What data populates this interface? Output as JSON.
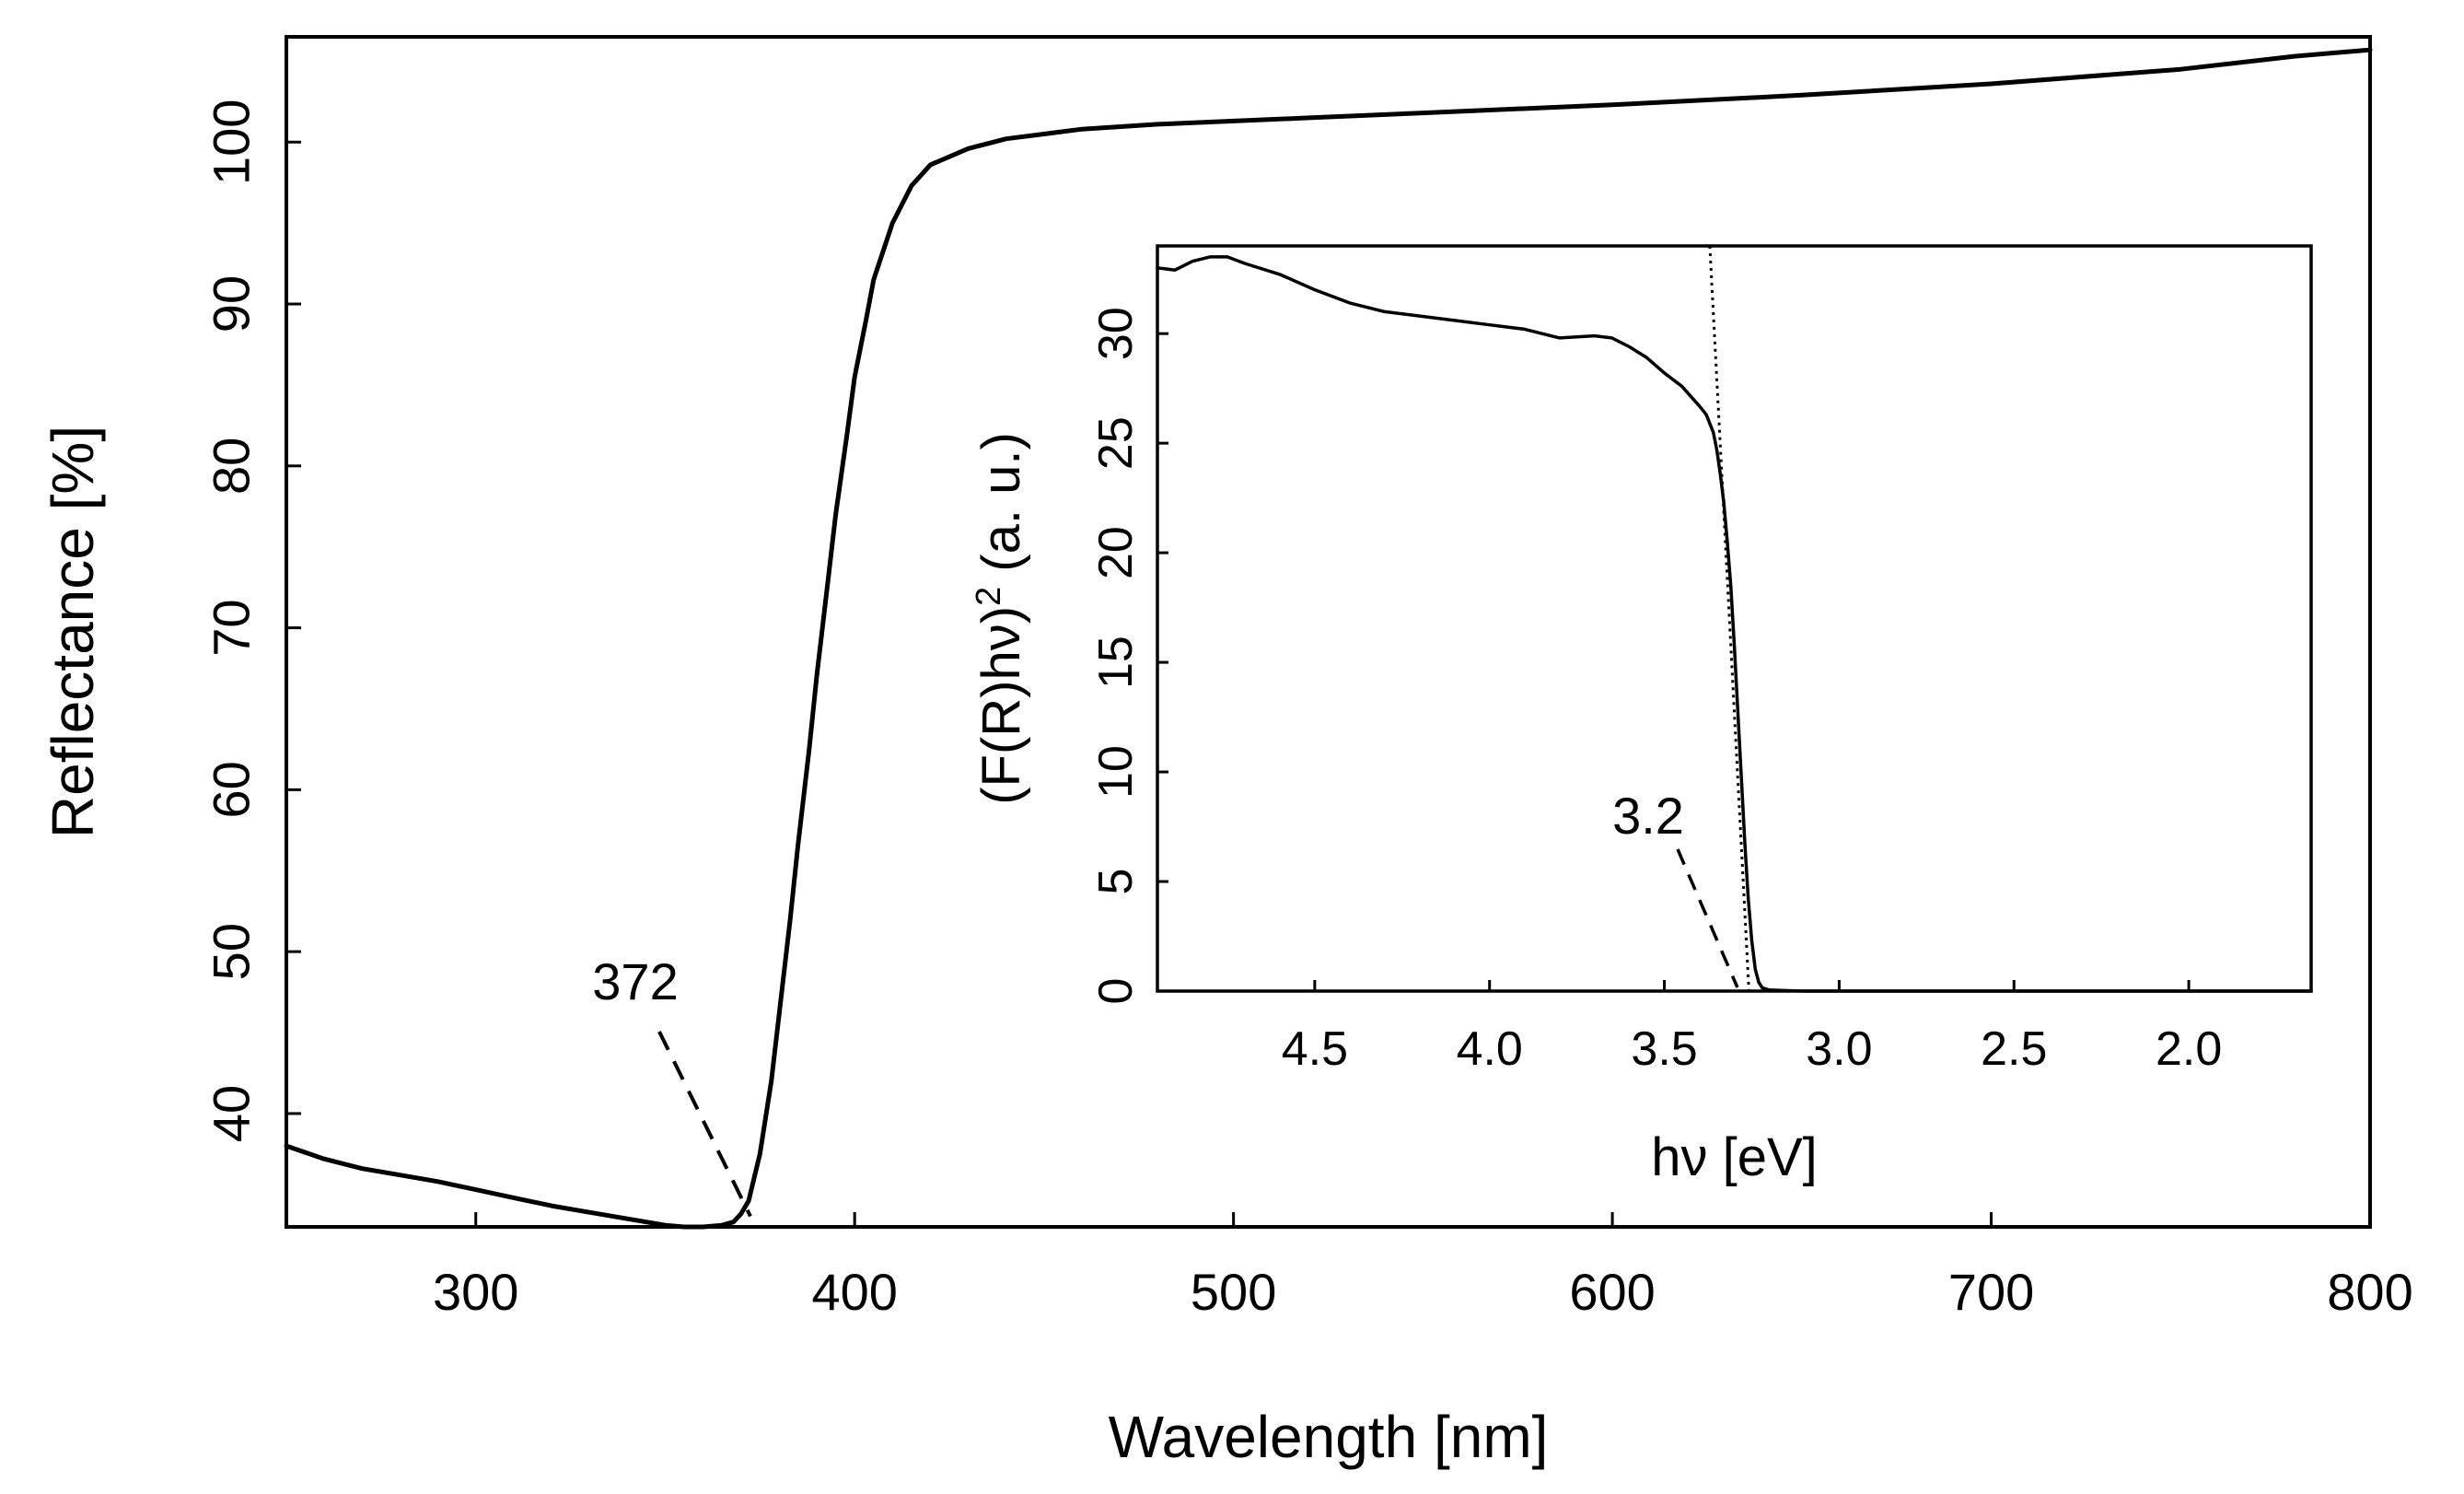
{
  "chart_data": [
    {
      "id": "main",
      "type": "line",
      "title": "",
      "xlabel": "Wavelength [nm]",
      "ylabel": "Reflectance [%]",
      "xlim": [
        250,
        800
      ],
      "ylim": [
        33,
        106.5
      ],
      "xticks": [
        300,
        400,
        500,
        600,
        700,
        800
      ],
      "xtick_labels": [
        "300",
        "400",
        "500",
        "600",
        "700",
        "800"
      ],
      "yticks": [
        40,
        50,
        60,
        70,
        80,
        90,
        100
      ],
      "ytick_labels": [
        "40",
        "50",
        "60",
        "70",
        "80",
        "90",
        "100"
      ],
      "grid": false,
      "series": [
        {
          "name": "Reflectance",
          "color": "#000000",
          "x": [
            250,
            260,
            270,
            280,
            290,
            300,
            310,
            320,
            330,
            340,
            350,
            355,
            360,
            365,
            368,
            370,
            372,
            375,
            378,
            380,
            383,
            385,
            388,
            390,
            393,
            395,
            398,
            400,
            403,
            405,
            410,
            415,
            420,
            430,
            440,
            450,
            460,
            480,
            500,
            520,
            550,
            600,
            650,
            700,
            750,
            780,
            800
          ],
          "y": [
            38.0,
            37.2,
            36.6,
            36.2,
            35.8,
            35.3,
            34.8,
            34.3,
            33.9,
            33.5,
            33.1,
            33.0,
            33.0,
            33.1,
            33.3,
            33.8,
            34.6,
            37.5,
            42.0,
            46.0,
            52.0,
            56.5,
            62.5,
            67.0,
            73.0,
            77.0,
            82.0,
            85.5,
            89.0,
            91.5,
            95.0,
            97.3,
            98.6,
            99.6,
            100.2,
            100.5,
            100.8,
            101.1,
            101.3,
            101.5,
            101.8,
            102.3,
            102.9,
            103.6,
            104.5,
            105.3,
            105.7
          ]
        }
      ],
      "annotations": [
        {
          "text": "372",
          "target_x": 372,
          "target_y": 33.2
        }
      ]
    },
    {
      "id": "inset",
      "type": "line",
      "title": "",
      "xlabel": "hν [eV]",
      "ylabel_base": "(F(R)hν)",
      "ylabel_sup": "2",
      "ylabel_suffix": " (a. u.)",
      "xlim": [
        4.95,
        1.65
      ],
      "ylim": [
        0,
        34
      ],
      "x_reversed": true,
      "xticks": [
        4.5,
        4.0,
        3.5,
        3.0,
        2.5,
        2.0
      ],
      "xtick_labels": [
        "4.5",
        "4.0",
        "3.5",
        "3.0",
        "2.5",
        "2.0"
      ],
      "yticks": [
        0,
        5,
        10,
        15,
        20,
        25,
        30
      ],
      "ytick_labels": [
        "0",
        "5",
        "10",
        "15",
        "20",
        "25",
        "30"
      ],
      "grid": false,
      "series": [
        {
          "name": "(F(R)hv)^2",
          "color": "#000000",
          "x": [
            4.95,
            4.9,
            4.85,
            4.8,
            4.75,
            4.7,
            4.6,
            4.5,
            4.4,
            4.3,
            4.2,
            4.1,
            4.0,
            3.9,
            3.8,
            3.7,
            3.65,
            3.6,
            3.55,
            3.5,
            3.45,
            3.4,
            3.38,
            3.36,
            3.35,
            3.34,
            3.33,
            3.32,
            3.31,
            3.3,
            3.29,
            3.28,
            3.27,
            3.26,
            3.25,
            3.24,
            3.23,
            3.22,
            3.2,
            3.15,
            3.1,
            3.0,
            2.5,
            2.0,
            1.65
          ],
          "y": [
            33.0,
            32.9,
            33.3,
            33.5,
            33.5,
            33.2,
            32.7,
            32.0,
            31.4,
            31.0,
            30.8,
            30.6,
            30.4,
            30.2,
            29.8,
            29.9,
            29.8,
            29.4,
            28.9,
            28.2,
            27.6,
            26.7,
            26.3,
            25.5,
            24.7,
            23.6,
            22.3,
            20.5,
            18.5,
            15.8,
            12.8,
            9.8,
            6.8,
            4.2,
            2.3,
            1.0,
            0.4,
            0.15,
            0.05,
            0.02,
            0.0,
            0.0,
            0.0,
            0.0,
            0.0
          ]
        },
        {
          "name": "tangent",
          "color": "#000000",
          "style": "dotted",
          "x": [
            3.37,
            3.258
          ],
          "y": [
            34.0,
            0.0
          ]
        }
      ],
      "annotations": [
        {
          "text": "3.2",
          "target_x": 3.27,
          "target_y": 0.0
        }
      ]
    }
  ]
}
